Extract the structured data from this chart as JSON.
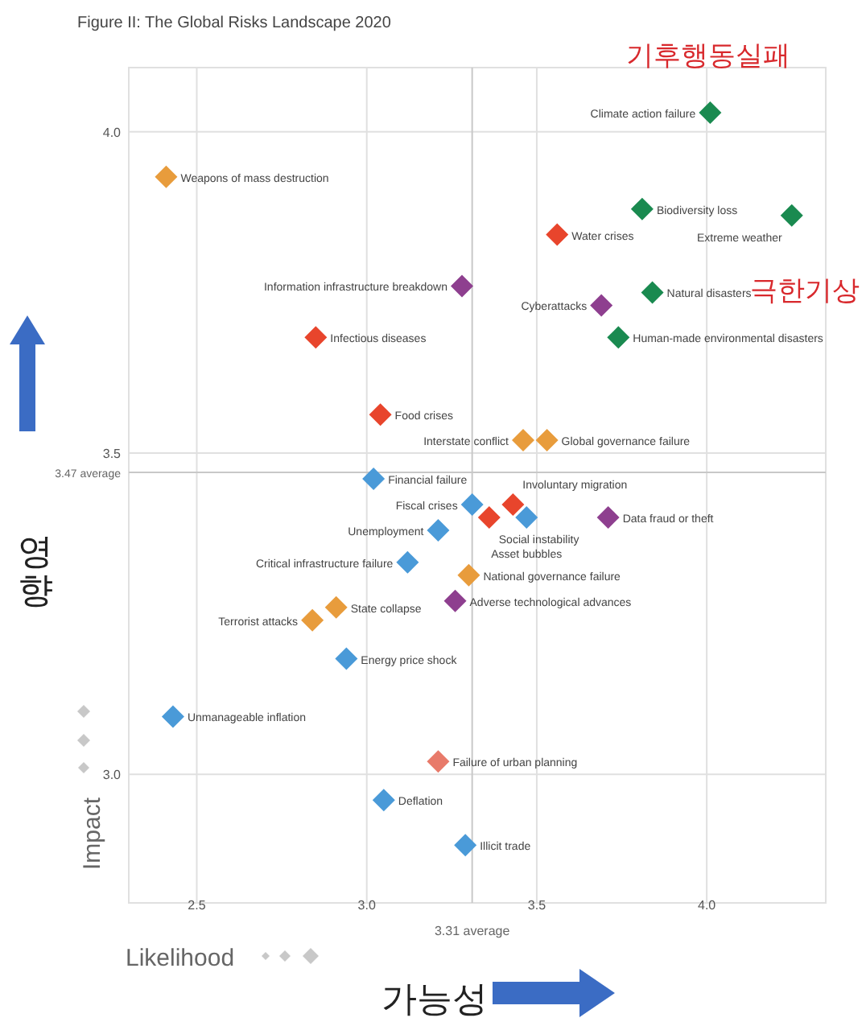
{
  "chart_data": {
    "type": "scatter",
    "title": "Figure II: The Global Risks Landscape 2020",
    "xlabel": "Likelihood",
    "ylabel": "Impact",
    "marker": "diamond",
    "grid": true,
    "xlim": [
      2.3,
      4.35
    ],
    "ylim": [
      2.8,
      4.1
    ],
    "xticks": [
      2.5,
      {
        "value": 3,
        "label": "3.0"
      },
      3.5,
      {
        "value": 4,
        "label": "4.0"
      }
    ],
    "yticks": [
      {
        "value": 3,
        "label": "3.0"
      },
      3.5,
      {
        "value": 4,
        "label": "4.0"
      }
    ],
    "ref_lines": [
      {
        "axis": "x",
        "value": 3.31,
        "label": "3.31 average"
      },
      {
        "axis": "y",
        "value": 3.47,
        "label": "3.47 average"
      }
    ],
    "x": [
      4.01,
      2.41,
      3.81,
      4.25,
      3.56,
      3.28,
      3.69,
      3.84,
      3.74,
      2.85,
      3.04,
      3.46,
      3.53,
      3.02,
      3.31,
      3.43,
      3.36,
      3.47,
      3.71,
      3.21,
      3.12,
      3.3,
      3.26,
      2.91,
      2.84,
      2.94,
      2.43,
      3.21,
      3.05,
      3.29
    ],
    "values": [
      4.03,
      3.93,
      3.88,
      3.87,
      3.84,
      3.76,
      3.73,
      3.75,
      3.68,
      3.68,
      3.56,
      3.52,
      3.52,
      3.46,
      3.42,
      3.42,
      3.4,
      3.4,
      3.4,
      3.38,
      3.33,
      3.31,
      3.27,
      3.26,
      3.24,
      3.18,
      3.09,
      3.02,
      2.96,
      2.89
    ],
    "colors": [
      "#1a8a50",
      "#e89c3c",
      "#1a8a50",
      "#1a8a50",
      "#e8452c",
      "#8e3f8f",
      "#8e3f8f",
      "#1a8a50",
      "#1a8a50",
      "#e8452c",
      "#e8452c",
      "#e89c3c",
      "#e89c3c",
      "#4a9ad8",
      "#4a9ad8",
      "#e8452c",
      "#e8452c",
      "#4a9ad8",
      "#8e3f8f",
      "#4a9ad8",
      "#4a9ad8",
      "#e89c3c",
      "#8e3f8f",
      "#e89c3c",
      "#e89c3c",
      "#4a9ad8",
      "#4a9ad8",
      "#e87a6a",
      "#4a9ad8",
      "#4a9ad8"
    ],
    "annotations": [
      {
        "text": "Climate action failure",
        "x": 4.01,
        "y": 4.03
      },
      {
        "text": "Weapons of mass destruction",
        "x": 2.41,
        "y": 3.93
      },
      {
        "text": "Biodiversity loss",
        "x": 3.81,
        "y": 3.88
      },
      {
        "text": "Extreme weather",
        "x": 4.25,
        "y": 3.87
      },
      {
        "text": "Water crises",
        "x": 3.56,
        "y": 3.84
      },
      {
        "text": "Information infrastructure breakdown",
        "x": 3.28,
        "y": 3.76
      },
      {
        "text": "Cyberattacks",
        "x": 3.69,
        "y": 3.73
      },
      {
        "text": "Natural disasters",
        "x": 3.84,
        "y": 3.75
      },
      {
        "text": "Human-made environmental disasters",
        "x": 3.74,
        "y": 3.68
      },
      {
        "text": "Infectious diseases",
        "x": 2.85,
        "y": 3.68
      },
      {
        "text": "Food crises",
        "x": 3.04,
        "y": 3.56
      },
      {
        "text": "Interstate conflict",
        "x": 3.46,
        "y": 3.52
      },
      {
        "text": "Global governance failure",
        "x": 3.53,
        "y": 3.52
      },
      {
        "text": "Financial failure",
        "x": 3.02,
        "y": 3.46
      },
      {
        "text": "Fiscal crises",
        "x": 3.31,
        "y": 3.42
      },
      {
        "text": "Involuntary migration",
        "x": 3.43,
        "y": 3.42
      },
      {
        "text": "Social instability",
        "x": 3.36,
        "y": 3.4
      },
      {
        "text": "Asset bubbles",
        "x": 3.47,
        "y": 3.4
      },
      {
        "text": "Data fraud or theft",
        "x": 3.71,
        "y": 3.4
      },
      {
        "text": "Unemployment",
        "x": 3.21,
        "y": 3.38
      },
      {
        "text": "Critical infrastructure failure",
        "x": 3.12,
        "y": 3.33
      },
      {
        "text": "National governance failure",
        "x": 3.3,
        "y": 3.31
      },
      {
        "text": "Adverse technological advances",
        "x": 3.26,
        "y": 3.27
      },
      {
        "text": "State collapse",
        "x": 2.91,
        "y": 3.26
      },
      {
        "text": "Terrorist attacks",
        "x": 2.84,
        "y": 3.24
      },
      {
        "text": "Energy price shock",
        "x": 2.94,
        "y": 3.18
      },
      {
        "text": "Unmanageable inflation",
        "x": 2.43,
        "y": 3.09
      },
      {
        "text": "Failure of urban planning",
        "x": 3.21,
        "y": 3.02
      },
      {
        "text": "Deflation",
        "x": 3.05,
        "y": 2.96
      },
      {
        "text": "Illicit trade",
        "x": 3.29,
        "y": 2.89
      },
      "기후행동실패",
      "극한기상",
      "영향",
      "가능성"
    ]
  }
}
